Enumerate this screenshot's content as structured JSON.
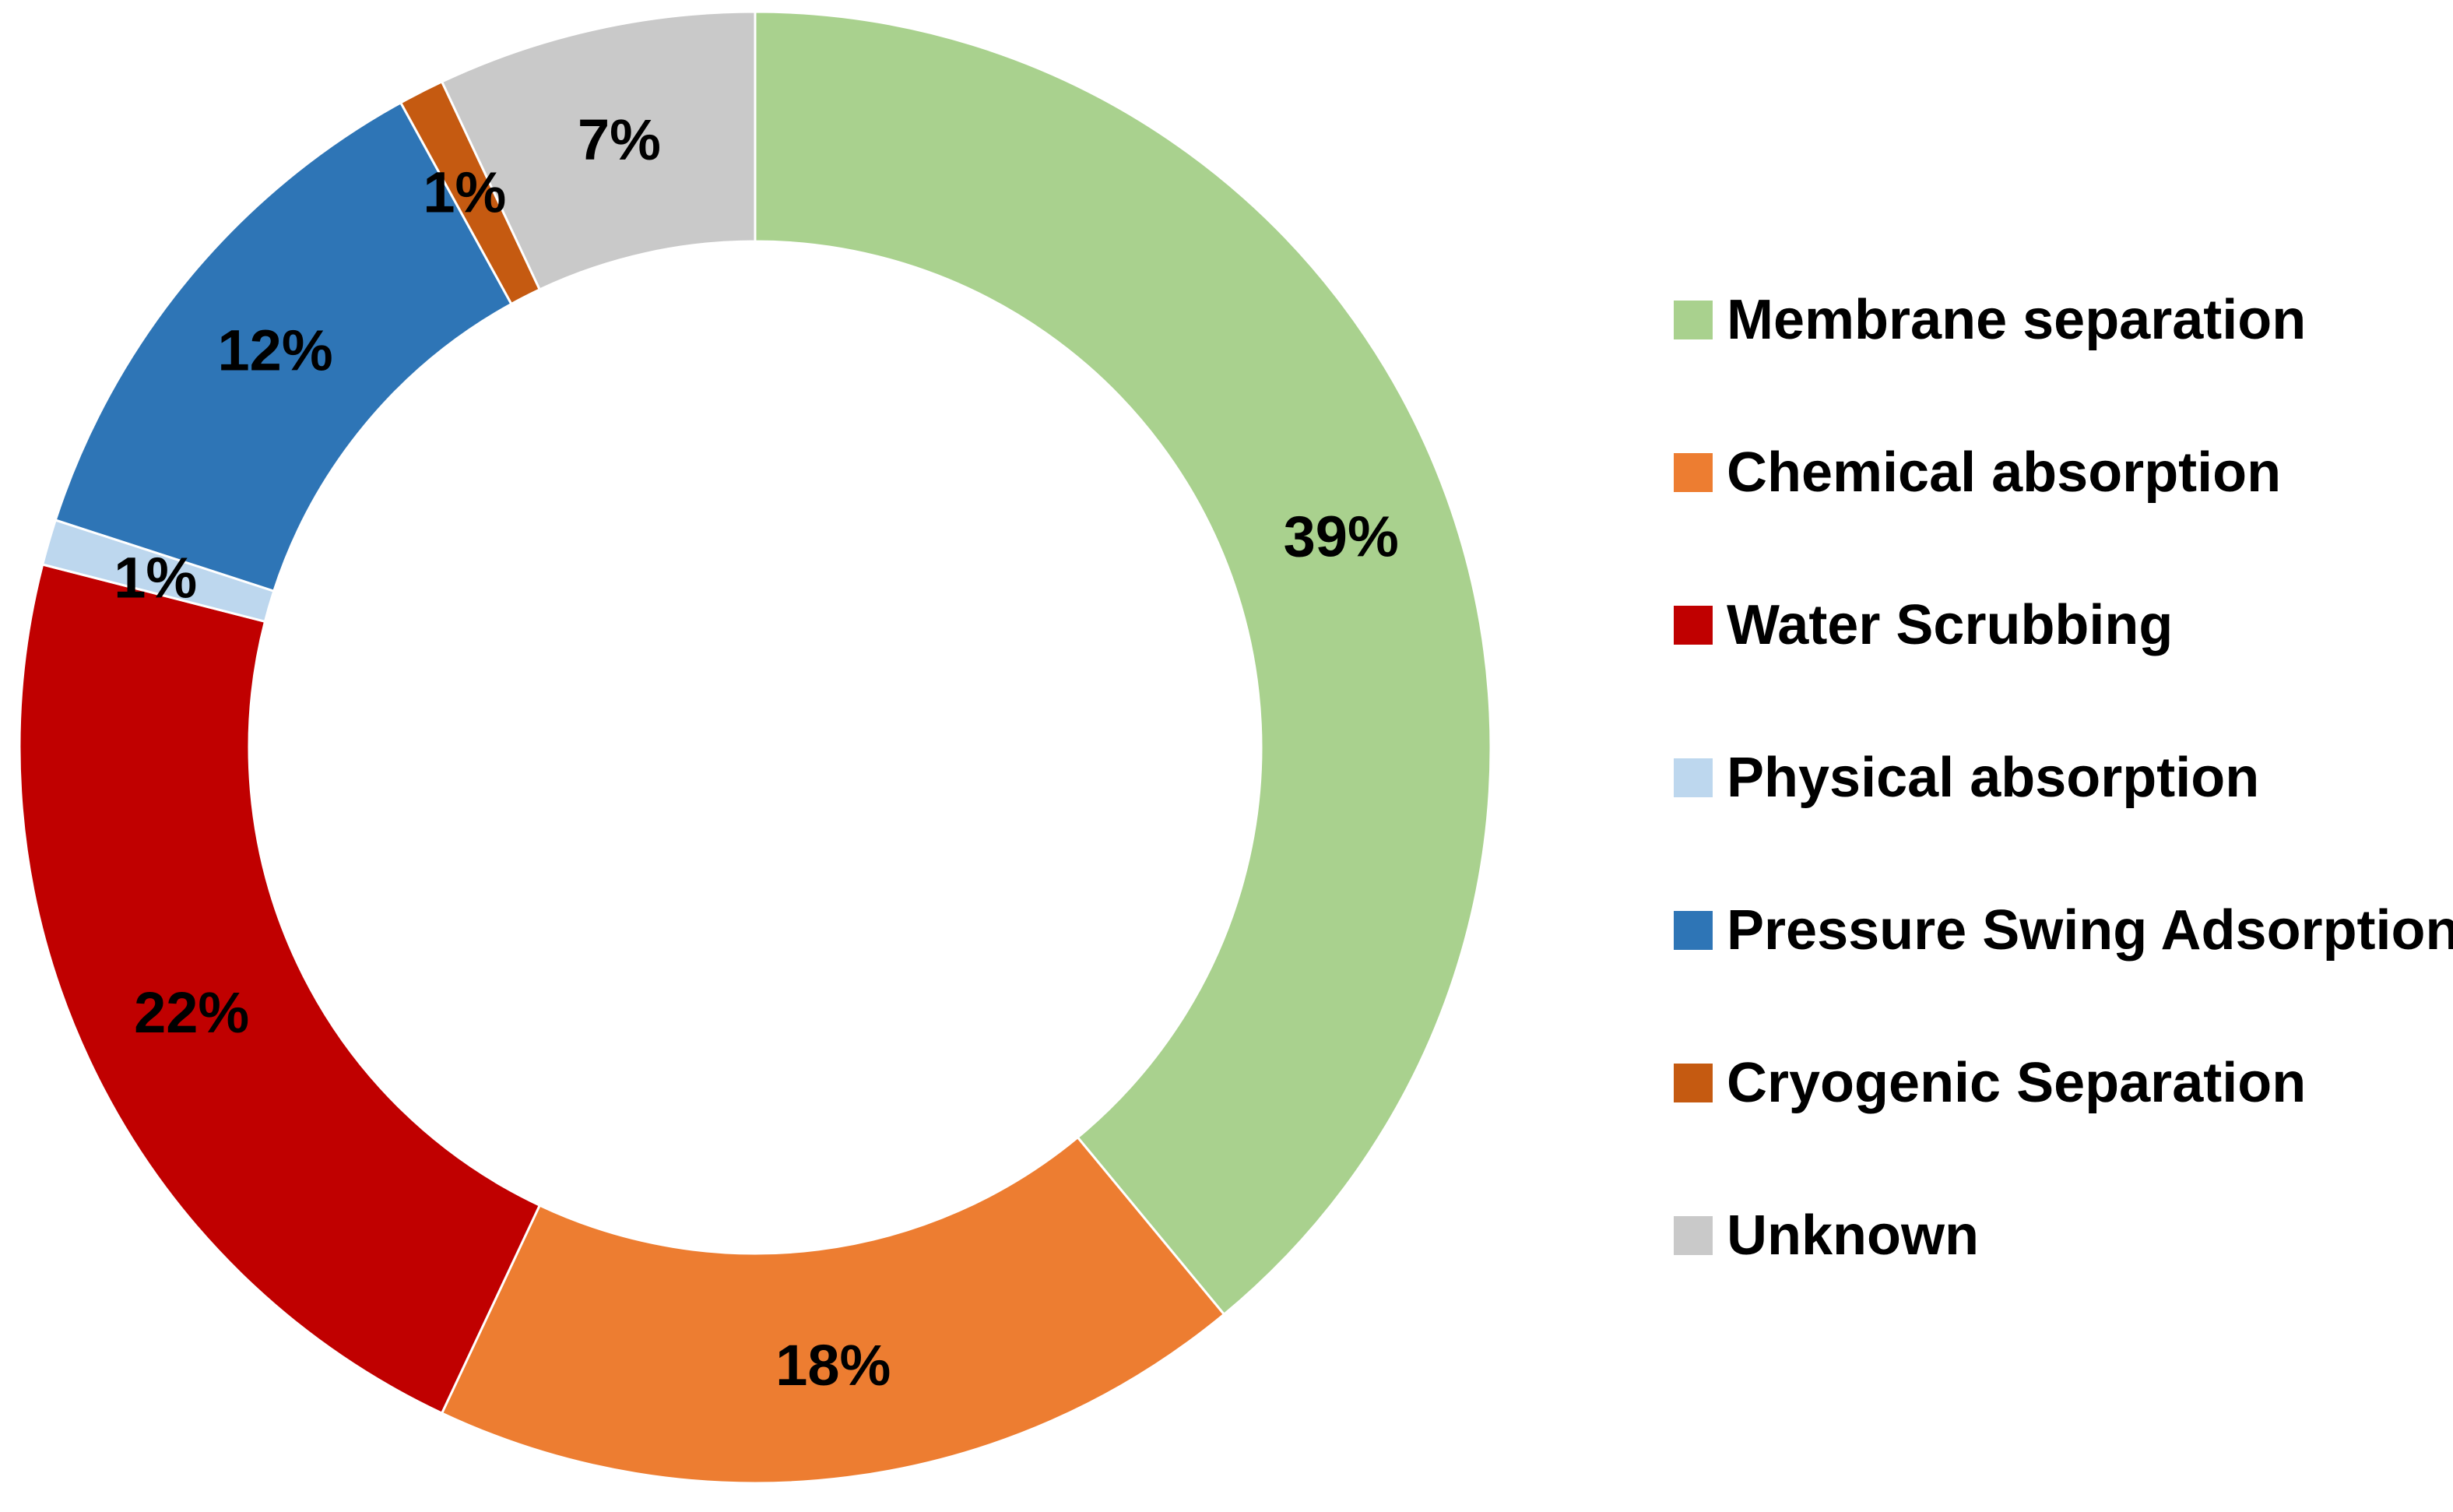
{
  "chart_data": {
    "type": "pie",
    "variant": "donut",
    "title": "",
    "categories": [
      "Membrane separation",
      "Chemical absorption",
      "Water Scrubbing",
      "Physical absorption",
      "Pressure Swing Adsorption",
      "Cryogenic Separation",
      "Unknown"
    ],
    "values": [
      39,
      18,
      22,
      1,
      12,
      1,
      7
    ],
    "data_labels": [
      "39%",
      "18%",
      "22%",
      "1%",
      "12%",
      "1%",
      "7%"
    ],
    "colors": [
      "#a9d18e",
      "#ed7d31",
      "#c00000",
      "#bdd7ee",
      "#2e75b6",
      "#c55a11",
      "#c9c9c9"
    ],
    "start_angle": "12 o'clock",
    "direction": "clockwise",
    "legend_position": "right"
  }
}
